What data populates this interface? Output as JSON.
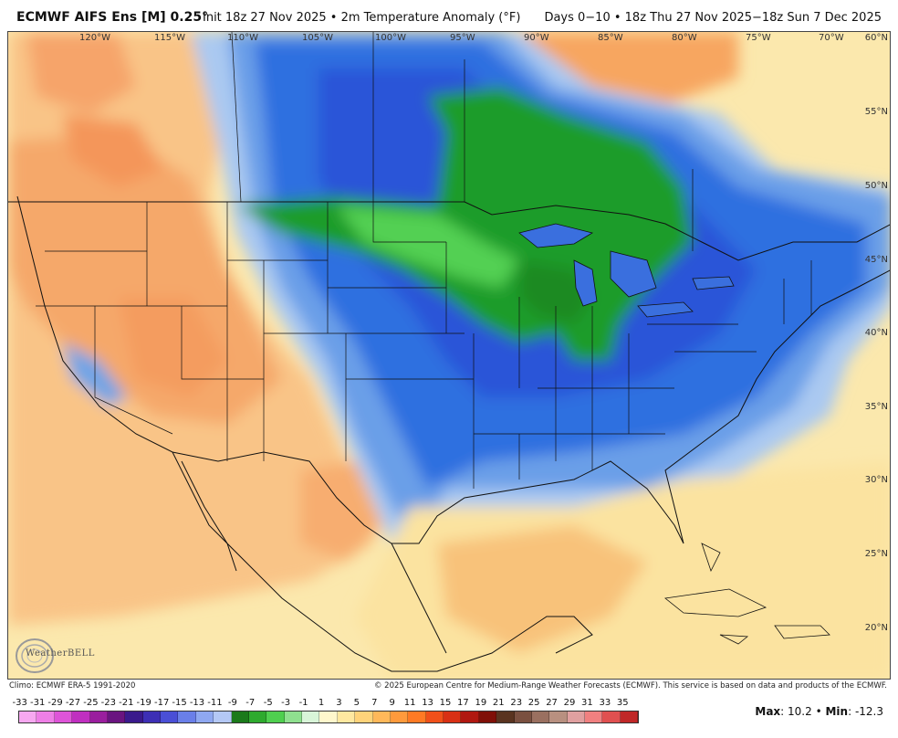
{
  "header": {
    "title": "ECMWF AIFS Ens [M] 0.25°",
    "init": "Init 18z 27 Nov 2025 • 2m Temperature Anomaly (°F)",
    "days": "Days 0−10 • 18z Thu 27 Nov 2025−18z Sun 7 Dec 2025"
  },
  "map": {
    "lon_labels": [
      "120°W",
      "115°W",
      "110°W",
      "105°W",
      "100°W",
      "95°W",
      "90°W",
      "85°W",
      "80°W",
      "75°W",
      "70°W"
    ],
    "lat_labels": [
      "60°N",
      "55°N",
      "50°N",
      "45°N",
      "40°N",
      "35°N",
      "30°N",
      "25°N",
      "20°N"
    ]
  },
  "logo": {
    "text": "WeatherBELL"
  },
  "footer": {
    "climo": "Climo: ECMWF ERA-5 1991-2020",
    "copyright": "© 2025 European Centre for Medium-Range Weather Forecasts (ECMWF). This service is based on data and products of the ECMWF."
  },
  "legend": {
    "labels": [
      "-33",
      "-31",
      "-29",
      "-27",
      "-25",
      "-23",
      "-21",
      "-19",
      "-17",
      "-15",
      "-13",
      "-11",
      "-9",
      "-7",
      "-5",
      "-3",
      "-1",
      "1",
      "3",
      "5",
      "7",
      "9",
      "11",
      "13",
      "15",
      "17",
      "19",
      "21",
      "23",
      "25",
      "27",
      "29",
      "31",
      "33",
      "35"
    ],
    "colors": [
      "#f7a8f0",
      "#ee7fe6",
      "#de54d8",
      "#c02fc0",
      "#9a1e9e",
      "#6a1480",
      "#3a1a8c",
      "#3d2fb5",
      "#4a4fd6",
      "#6a7fe8",
      "#8fa8f0",
      "#b4c8f5",
      "#1b7a1b",
      "#2eaa2e",
      "#4fcf4f",
      "#8fe08f",
      "#d8f5d8",
      "#fff7cc",
      "#ffe8a0",
      "#ffd37a",
      "#ffb85a",
      "#ff9a3c",
      "#ff7a24",
      "#f0501a",
      "#d83014",
      "#b01810",
      "#801008",
      "#5a3420",
      "#7a5040",
      "#9a7060",
      "#b89080",
      "#e0a0a0",
      "#f08080",
      "#e05050",
      "#c02828"
    ],
    "max_label": "Max",
    "max_value": "10.2",
    "min_label": "Min",
    "min_value": "-12.3"
  }
}
